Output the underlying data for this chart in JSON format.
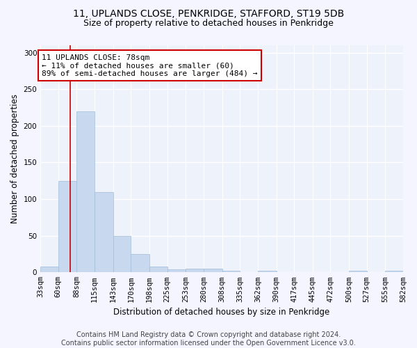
{
  "title_line1": "11, UPLANDS CLOSE, PENKRIDGE, STAFFORD, ST19 5DB",
  "title_line2": "Size of property relative to detached houses in Penkridge",
  "xlabel": "Distribution of detached houses by size in Penkridge",
  "ylabel": "Number of detached properties",
  "bar_color": "#c8d9ef",
  "bar_edge_color": "#a0bcd8",
  "background_color": "#eef2fa",
  "grid_color": "#ffffff",
  "property_line_x": 78,
  "annotation_text": "11 UPLANDS CLOSE: 78sqm\n← 11% of detached houses are smaller (60)\n89% of semi-detached houses are larger (484) →",
  "annotation_box_color": "#ffffff",
  "annotation_box_edge": "#cc0000",
  "vline_color": "#cc0000",
  "bin_edges": [
    33,
    60,
    88,
    115,
    143,
    170,
    198,
    225,
    253,
    280,
    308,
    335,
    362,
    390,
    417,
    445,
    472,
    500,
    527,
    555,
    582
  ],
  "bin_heights": [
    8,
    125,
    220,
    110,
    50,
    25,
    8,
    4,
    5,
    5,
    2,
    0,
    2,
    0,
    0,
    0,
    0,
    2,
    0,
    2
  ],
  "ylim": [
    0,
    310
  ],
  "yticks": [
    0,
    50,
    100,
    150,
    200,
    250,
    300
  ],
  "footer_text": "Contains HM Land Registry data © Crown copyright and database right 2024.\nContains public sector information licensed under the Open Government Licence v3.0.",
  "title_fontsize": 10,
  "subtitle_fontsize": 9,
  "axis_label_fontsize": 8.5,
  "tick_fontsize": 7.5,
  "annotation_fontsize": 8,
  "footer_fontsize": 7
}
